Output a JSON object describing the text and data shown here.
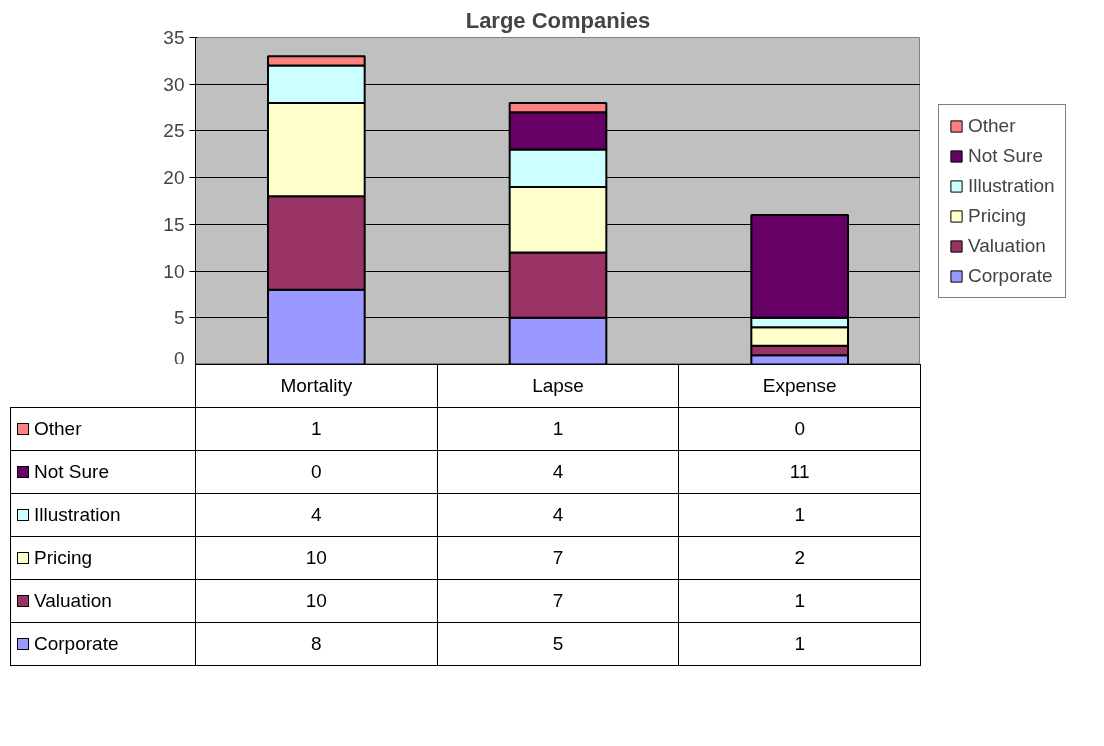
{
  "chart_data": {
    "type": "bar",
    "title": "Large Companies",
    "stacked": true,
    "categories": [
      "Mortality",
      "Lapse",
      "Expense"
    ],
    "series": [
      {
        "name": "Corporate",
        "color": "#9999ff",
        "values": [
          8,
          5,
          1
        ]
      },
      {
        "name": "Valuation",
        "color": "#993366",
        "values": [
          10,
          7,
          1
        ]
      },
      {
        "name": "Pricing",
        "color": "#ffffcc",
        "values": [
          10,
          7,
          2
        ]
      },
      {
        "name": "Illustration",
        "color": "#ccffff",
        "values": [
          4,
          4,
          1
        ]
      },
      {
        "name": "Not Sure",
        "color": "#660066",
        "values": [
          0,
          4,
          11
        ]
      },
      {
        "name": "Other",
        "color": "#ff8080",
        "values": [
          1,
          1,
          0
        ]
      }
    ],
    "ylim": [
      0,
      35
    ],
    "yticks": [
      0,
      5,
      10,
      15,
      20,
      25,
      30,
      35
    ],
    "grid": "y",
    "legend": "right",
    "data_labels": true
  }
}
